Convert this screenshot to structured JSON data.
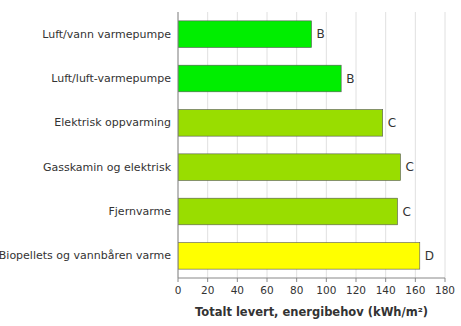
{
  "chart_data": {
    "type": "bar",
    "orientation": "horizontal",
    "categories": [
      "Biopellets og vannbåren varme",
      "Fjernvarme",
      "Gasskamin og elektrisk",
      "Elektrisk oppvarming",
      "Luft/luft-varmepumpe",
      "Luft/vann varmepumpe"
    ],
    "values": [
      163,
      148,
      150,
      138,
      110,
      90
    ],
    "colors": [
      "#ffff00",
      "#99dd00",
      "#99dd00",
      "#99dd00",
      "#00ee00",
      "#00ee00"
    ],
    "annotations": [
      "D",
      "C",
      "C",
      "C",
      "B",
      "B"
    ],
    "x_label": "Totalt levert, energibehov (kWh/m²)",
    "xlim": [
      0,
      180
    ],
    "xticks": [
      0,
      20,
      40,
      60,
      80,
      100,
      120,
      140,
      160,
      180
    ],
    "grid": true
  }
}
